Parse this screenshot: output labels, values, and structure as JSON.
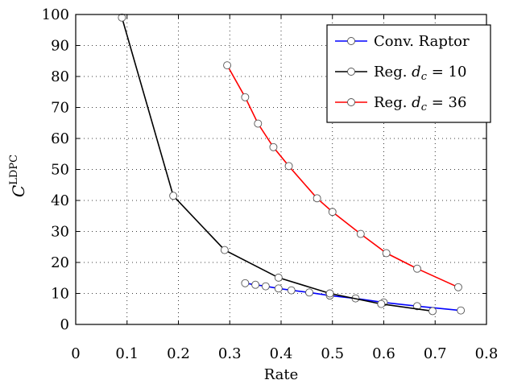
{
  "chart_data": {
    "type": "line",
    "xlabel": "Rate",
    "ylabel": "C",
    "ylabel_superscript": "LDPC",
    "xlim": [
      0,
      0.8
    ],
    "ylim": [
      0,
      100
    ],
    "x_ticks": [
      "0",
      "0.1",
      "0.2",
      "0.3",
      "0.4",
      "0.5",
      "0.6",
      "0.7",
      "0.8"
    ],
    "y_ticks": [
      "0",
      "10",
      "20",
      "30",
      "40",
      "50",
      "60",
      "70",
      "80",
      "90",
      "100"
    ],
    "grid": true,
    "legend_position": "top-right",
    "series": [
      {
        "name": "Conv. Raptor",
        "color": "#0000ff",
        "x": [
          0.33,
          0.35,
          0.37,
          0.395,
          0.42,
          0.455,
          0.495,
          0.545,
          0.6,
          0.665,
          0.75
        ],
        "y": [
          13.3,
          12.8,
          12.3,
          11.6,
          11.0,
          10.3,
          9.3,
          8.4,
          7.1,
          5.9,
          4.5
        ]
      },
      {
        "name": "Reg. d_c = 10",
        "name_prefix": "Reg.",
        "name_var": "d",
        "name_sub": "c",
        "name_suffix": "= 10",
        "color": "#000000",
        "x": [
          0.09,
          0.19,
          0.29,
          0.395,
          0.495,
          0.595,
          0.695
        ],
        "y": [
          99,
          41.5,
          24,
          15.1,
          10,
          6.6,
          4.3
        ]
      },
      {
        "name": "Reg. d_c = 36",
        "name_prefix": "Reg.",
        "name_var": "d",
        "name_sub": "c",
        "name_suffix": "= 36",
        "color": "#ff0000",
        "x": [
          0.295,
          0.33,
          0.355,
          0.385,
          0.415,
          0.47,
          0.5,
          0.555,
          0.605,
          0.665,
          0.745
        ],
        "y": [
          83.6,
          73.3,
          64.8,
          57.2,
          51.1,
          40.7,
          36.3,
          29.2,
          23,
          18,
          12
        ]
      }
    ]
  }
}
